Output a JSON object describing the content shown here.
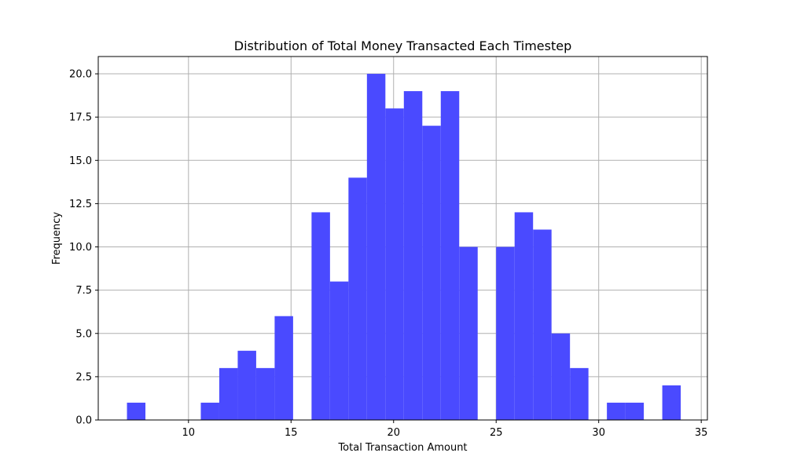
{
  "chart_data": {
    "type": "bar",
    "subtype": "histogram",
    "title": "Distribution of Total Money Transacted Each Timestep",
    "xlabel": "Total Transaction Amount",
    "ylabel": "Frequency",
    "xlim": [
      5.6,
      35.3
    ],
    "ylim": [
      0,
      21
    ],
    "x_ticks": [
      10,
      15,
      20,
      25,
      30,
      35
    ],
    "x_tick_labels": [
      "10",
      "15",
      "20",
      "25",
      "30",
      "35"
    ],
    "y_ticks": [
      0,
      2.5,
      5,
      7.5,
      10,
      12.5,
      15,
      17.5,
      20
    ],
    "y_tick_labels": [
      "0.0",
      "2.5",
      "5.0",
      "7.5",
      "10.0",
      "12.5",
      "15.0",
      "17.5",
      "20.0"
    ],
    "grid": true,
    "bar_color": "#4a4aff",
    "bin_edges": [
      7.0,
      7.9,
      8.8,
      9.7,
      10.6,
      11.5,
      12.4,
      13.3,
      14.2,
      15.1,
      16.0,
      16.9,
      17.8,
      18.7,
      19.6,
      20.5,
      21.4,
      22.3,
      23.2,
      24.1,
      25.0,
      25.9,
      26.8,
      27.7,
      28.6,
      29.5,
      30.4,
      31.3,
      32.2,
      33.1,
      34.0
    ],
    "values": [
      1,
      0,
      0,
      0,
      1,
      3,
      4,
      3,
      6,
      0,
      12,
      8,
      14,
      20,
      18,
      19,
      17,
      19,
      10,
      0,
      10,
      12,
      11,
      5,
      3,
      0,
      1,
      1,
      0,
      2
    ]
  }
}
